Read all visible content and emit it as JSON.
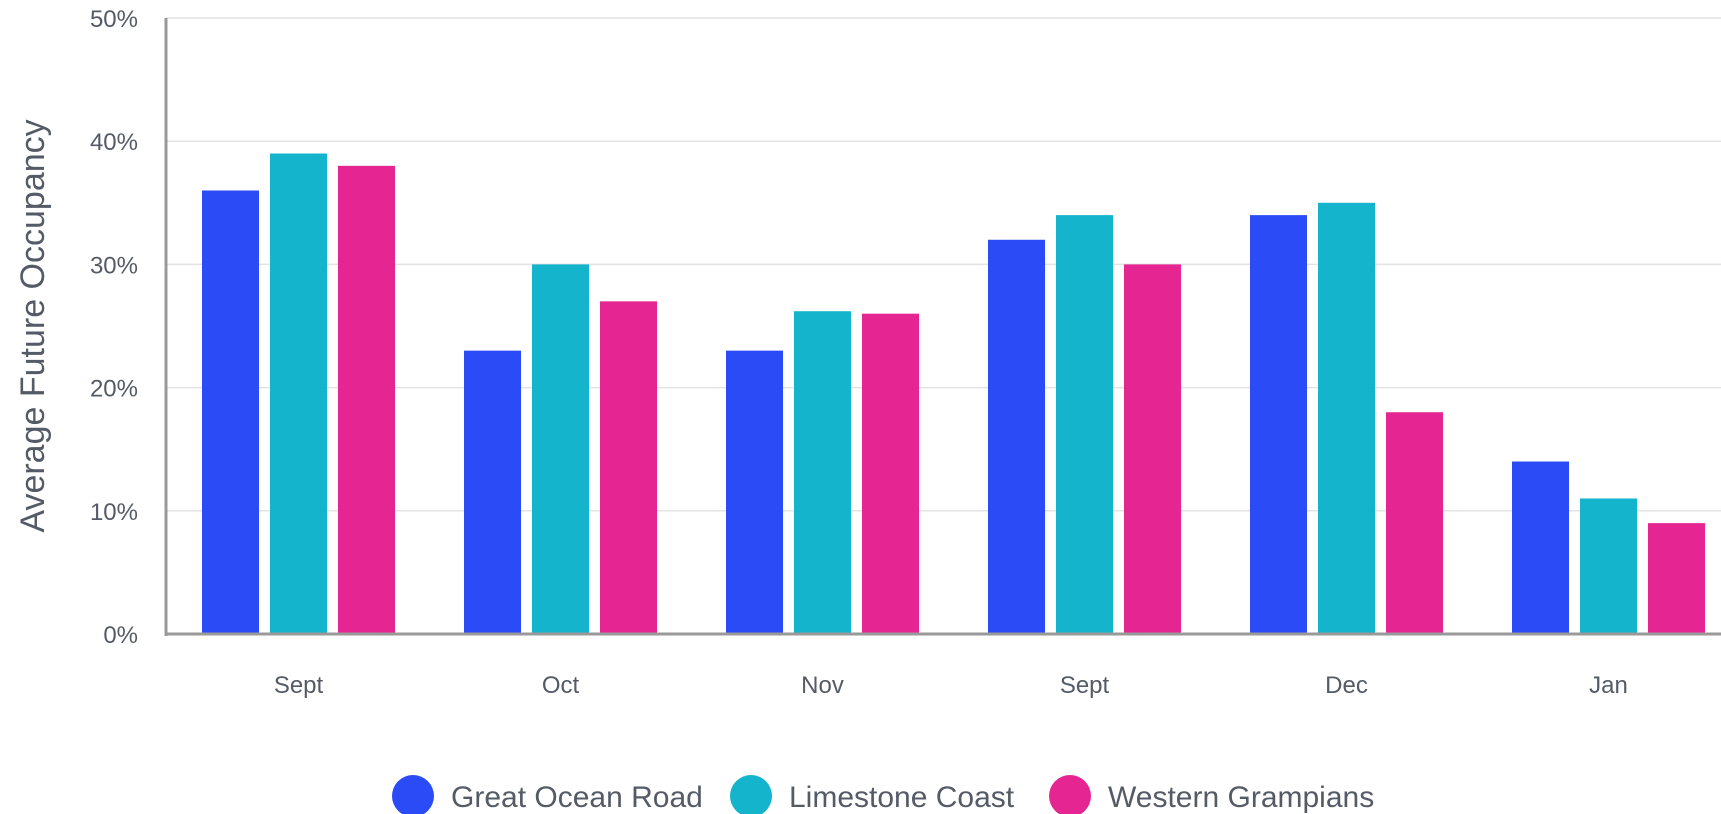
{
  "chart_data": {
    "type": "bar",
    "title": "",
    "xlabel": "",
    "ylabel": "Average Future Occupancy",
    "ylim": [
      0,
      50
    ],
    "yticks": [
      "0%",
      "10%",
      "20%",
      "30%",
      "40%",
      "50%"
    ],
    "grid": true,
    "legend": "bottom",
    "categories": [
      "Sept",
      "Oct",
      "Nov",
      "Sept",
      "Dec",
      "Jan"
    ],
    "series": [
      {
        "name": "Great Ocean Road",
        "color": "#2a4bf5",
        "values": [
          36,
          23,
          23,
          32,
          34,
          14
        ]
      },
      {
        "name": "Limestone Coast",
        "color": "#13b4cc",
        "values": [
          39,
          30,
          26.2,
          34,
          35,
          11
        ]
      },
      {
        "name": "Western Grampians",
        "color": "#e52591",
        "values": [
          38,
          27,
          26,
          30,
          18,
          9
        ]
      }
    ]
  }
}
